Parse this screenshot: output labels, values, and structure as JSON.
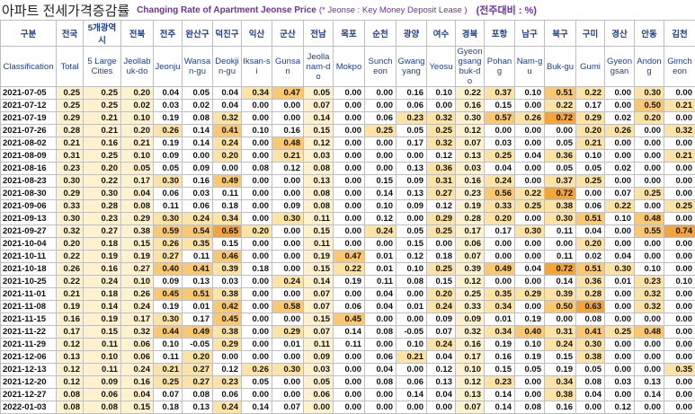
{
  "header": {
    "title": "아파트 전세가격증감률",
    "subtitle": "Changing Rate of Apartment Jeonse Price",
    "note": "(* Jeonse : Key Money Deposit Lease )",
    "unit": "(전주대비 : %)"
  },
  "table": {
    "corner": {
      "ko": "구분",
      "en": "Classification"
    },
    "columns": [
      {
        "ko": "전국",
        "en": "Total"
      },
      {
        "ko": "5개광역시",
        "en": "5 Large Cities"
      },
      {
        "ko": "전북",
        "en": "Jeollabuk-do"
      },
      {
        "ko": "전주",
        "en": "Jeonju"
      },
      {
        "ko": "완산구",
        "en": "Wansan-gu"
      },
      {
        "ko": "덕진구",
        "en": "Deokjin-gu"
      },
      {
        "ko": "익산",
        "en": "Iksan-si"
      },
      {
        "ko": "군산",
        "en": "Gunsan"
      },
      {
        "ko": "전남",
        "en": "Jeollanam-do"
      },
      {
        "ko": "목포",
        "en": "Mokpo"
      },
      {
        "ko": "순천",
        "en": "Suncheon"
      },
      {
        "ko": "광양",
        "en": "Gwangyang"
      },
      {
        "ko": "여수",
        "en": "Yeosu"
      },
      {
        "ko": "경북",
        "en": "Gyeongsangbuk-do"
      },
      {
        "ko": "포항",
        "en": "Pohang"
      },
      {
        "ko": "남구",
        "en": "Nam-gu"
      },
      {
        "ko": "북구",
        "en": "Buk-gu"
      },
      {
        "ko": "구미",
        "en": "Gumi"
      },
      {
        "ko": "경산",
        "en": "Gyeongsan"
      },
      {
        "ko": "안동",
        "en": "Andong"
      },
      {
        "ko": "김천",
        "en": "Gimcheon"
      }
    ],
    "rows": [
      {
        "date": "2021-07-05",
        "values": [
          "0.25",
          "0.25",
          "0.20",
          "0.04",
          "0.05",
          "0.04",
          "0.34",
          "0.47",
          "0.05",
          "0.00",
          "0.00",
          "0.16",
          "0.10",
          "0.22",
          "0.37",
          "0.10",
          "0.51",
          "0.22",
          "0.00",
          "0.30",
          "0.00"
        ]
      },
      {
        "date": "2021-07-12",
        "values": [
          "0.25",
          "0.25",
          "0.02",
          "0.03",
          "0.02",
          "0.04",
          "0.00",
          "0.00",
          "0.07",
          "0.00",
          "0.00",
          "0.06",
          "0.00",
          "0.16",
          "0.15",
          "0.00",
          "0.22",
          "0.17",
          "0.00",
          "0.50",
          "0.21"
        ]
      },
      {
        "date": "2021-07-19",
        "values": [
          "0.29",
          "0.21",
          "0.10",
          "0.19",
          "0.08",
          "0.32",
          "0.00",
          "0.00",
          "0.14",
          "0.00",
          "0.06",
          "0.23",
          "0.32",
          "0.30",
          "0.57",
          "0.26",
          "0.72",
          "0.29",
          "0.02",
          "0.20",
          "0.00"
        ]
      },
      {
        "date": "2021-07-26",
        "values": [
          "0.28",
          "0.21",
          "0.20",
          "0.26",
          "0.14",
          "0.41",
          "0.10",
          "0.16",
          "0.15",
          "0.00",
          "0.25",
          "0.05",
          "0.25",
          "0.12",
          "0.00",
          "0.00",
          "0.00",
          "0.20",
          "0.26",
          "0.00",
          "0.32"
        ]
      },
      {
        "date": "2021-08-02",
        "values": [
          "0.21",
          "0.16",
          "0.21",
          "0.19",
          "0.14",
          "0.24",
          "0.00",
          "0.48",
          "0.12",
          "0.00",
          "0.00",
          "0.17",
          "0.32",
          "0.07",
          "0.03",
          "0.00",
          "0.05",
          "0.21",
          "0.00",
          "0.00",
          "0.00"
        ]
      },
      {
        "date": "2021-08-09",
        "values": [
          "0.31",
          "0.25",
          "0.10",
          "0.09",
          "0.00",
          "0.20",
          "0.00",
          "0.21",
          "0.03",
          "0.00",
          "0.00",
          "0.00",
          "0.12",
          "0.13",
          "0.25",
          "0.04",
          "0.36",
          "0.10",
          "0.00",
          "0.00",
          "0.21"
        ]
      },
      {
        "date": "2021-08-16",
        "values": [
          "0.23",
          "0.20",
          "0.05",
          "0.05",
          "0.09",
          "0.00",
          "0.08",
          "0.12",
          "0.08",
          "0.00",
          "0.00",
          "0.13",
          "0.36",
          "0.03",
          "0.04",
          "0.00",
          "0.05",
          "0.05",
          "0.02",
          "0.00",
          "0.00"
        ]
      },
      {
        "date": "2021-08-23",
        "values": [
          "0.30",
          "0.22",
          "0.17",
          "0.30",
          "0.16",
          "0.49",
          "0.00",
          "0.00",
          "0.13",
          "0.00",
          "0.15",
          "0.09",
          "0.31",
          "0.16",
          "0.24",
          "0.00",
          "0.37",
          "0.25",
          "0.00",
          "0.00",
          "0.00"
        ]
      },
      {
        "date": "2021-08-30",
        "values": [
          "0.29",
          "0.30",
          "0.04",
          "0.06",
          "0.03",
          "0.11",
          "0.00",
          "0.00",
          "0.08",
          "0.00",
          "0.14",
          "0.13",
          "0.27",
          "0.23",
          "0.56",
          "0.22",
          "0.72",
          "0.00",
          "0.07",
          "0.25",
          "0.00"
        ]
      },
      {
        "date": "2021-09-06",
        "values": [
          "0.33",
          "0.28",
          "0.08",
          "0.11",
          "0.06",
          "0.18",
          "0.00",
          "0.09",
          "0.08",
          "0.00",
          "0.10",
          "0.09",
          "0.12",
          "0.19",
          "0.33",
          "0.25",
          "0.38",
          "0.06",
          "0.22",
          "0.00",
          "0.25"
        ]
      },
      {
        "date": "2021-09-13",
        "values": [
          "0.30",
          "0.23",
          "0.29",
          "0.30",
          "0.24",
          "0.34",
          "0.00",
          "0.30",
          "0.11",
          "0.00",
          "0.12",
          "0.00",
          "0.29",
          "0.28",
          "0.20",
          "0.00",
          "0.30",
          "0.51",
          "0.10",
          "0.48",
          "0.00"
        ]
      },
      {
        "date": "2021-09-27",
        "values": [
          "0.32",
          "0.27",
          "0.38",
          "0.59",
          "0.54",
          "0.65",
          "0.20",
          "0.00",
          "0.15",
          "0.00",
          "0.24",
          "0.05",
          "0.25",
          "0.17",
          "0.17",
          "0.30",
          "0.11",
          "0.04",
          "0.00",
          "0.55",
          "0.74"
        ]
      },
      {
        "date": "2021-10-04",
        "values": [
          "0.20",
          "0.18",
          "0.15",
          "0.26",
          "0.35",
          "0.15",
          "0.00",
          "0.00",
          "0.11",
          "0.00",
          "0.00",
          "0.15",
          "0.00",
          "0.06",
          "0.00",
          "0.00",
          "0.00",
          "0.20",
          "0.00",
          "0.00",
          "0.00"
        ]
      },
      {
        "date": "2021-10-11",
        "values": [
          "0.22",
          "0.19",
          "0.19",
          "0.27",
          "0.11",
          "0.46",
          "0.00",
          "0.00",
          "0.19",
          "0.47",
          "0.01",
          "0.12",
          "0.18",
          "0.07",
          "0.00",
          "0.00",
          "0.11",
          "0.02",
          "0.04",
          "0.00",
          "0.00"
        ]
      },
      {
        "date": "2021-10-18",
        "values": [
          "0.26",
          "0.16",
          "0.27",
          "0.40",
          "0.41",
          "0.39",
          "0.18",
          "0.00",
          "0.15",
          "0.22",
          "0.01",
          "0.10",
          "0.25",
          "0.39",
          "0.49",
          "0.04",
          "0.72",
          "0.51",
          "0.30",
          "0.10",
          "0.00"
        ]
      },
      {
        "date": "2021-10-25",
        "values": [
          "0.22",
          "0.24",
          "0.10",
          "0.09",
          "0.13",
          "0.03",
          "0.00",
          "0.24",
          "0.14",
          "0.19",
          "0.11",
          "0.08",
          "0.15",
          "0.12",
          "0.00",
          "0.00",
          "0.14",
          "0.36",
          "0.01",
          "0.23",
          "0.10"
        ]
      },
      {
        "date": "2021-11-01",
        "values": [
          "0.21",
          "0.18",
          "0.26",
          "0.45",
          "0.51",
          "0.38",
          "0.00",
          "0.00",
          "0.07",
          "0.00",
          "0.04",
          "0.00",
          "0.20",
          "0.25",
          "0.35",
          "0.29",
          "0.39",
          "0.28",
          "0.00",
          "0.32",
          "0.00"
        ]
      },
      {
        "date": "2021-11-08",
        "values": [
          "0.19",
          "0.14",
          "0.24",
          "0.19",
          "0.01",
          "0.42",
          "0.00",
          "0.58",
          "0.07",
          "0.06",
          "0.04",
          "0.01",
          "0.24",
          "0.33",
          "0.34",
          "0.00",
          "0.50",
          "0.63",
          "0.00",
          "0.32",
          "0.00"
        ]
      },
      {
        "date": "2021-11-15",
        "values": [
          "0.16",
          "0.19",
          "0.17",
          "0.30",
          "0.17",
          "0.45",
          "0.00",
          "0.00",
          "0.15",
          "0.45",
          "0.00",
          "0.00",
          "0.09",
          "0.09",
          "0.01",
          "0.19",
          "0.00",
          "0.08",
          "0.00",
          "0.00",
          "0.00"
        ]
      },
      {
        "date": "2021-11-22",
        "values": [
          "0.17",
          "0.15",
          "0.32",
          "0.44",
          "0.49",
          "0.38",
          "0.00",
          "0.29",
          "0.07",
          "0.14",
          "0.08",
          "-0.05",
          "0.07",
          "0.32",
          "0.34",
          "0.40",
          "0.31",
          "0.41",
          "0.25",
          "0.48",
          "0.00"
        ]
      },
      {
        "date": "2021-11-29",
        "values": [
          "0.12",
          "0.11",
          "0.06",
          "0.10",
          "-0.05",
          "0.29",
          "0.00",
          "0.01",
          "0.11",
          "0.11",
          "0.00",
          "0.10",
          "0.24",
          "0.16",
          "0.19",
          "0.10",
          "0.24",
          "0.30",
          "0.00",
          "0.00",
          "0.00"
        ]
      },
      {
        "date": "2021-12-06",
        "values": [
          "0.13",
          "0.10",
          "0.06",
          "0.11",
          "0.20",
          "0.00",
          "0.00",
          "0.00",
          "0.09",
          "0.00",
          "0.06",
          "0.21",
          "0.04",
          "0.17",
          "0.16",
          "0.19",
          "0.15",
          "0.38",
          "0.00",
          "0.00",
          "0.00"
        ]
      },
      {
        "date": "2021-12-13",
        "values": [
          "0.12",
          "0.11",
          "0.24",
          "0.21",
          "0.27",
          "0.12",
          "0.26",
          "0.30",
          "0.03",
          "0.00",
          "0.04",
          "0.00",
          "0.12",
          "0.10",
          "0.15",
          "0.05",
          "0.19",
          "0.05",
          "0.00",
          "0.00",
          "0.35"
        ]
      },
      {
        "date": "2021-12-20",
        "values": [
          "0.12",
          "0.09",
          "0.16",
          "0.25",
          "0.27",
          "0.23",
          "0.05",
          "0.00",
          "0.05",
          "0.00",
          "0.08",
          "0.06",
          "0.13",
          "0.12",
          "0.23",
          "0.00",
          "0.34",
          "0.08",
          "0.03",
          "0.13",
          "0.00"
        ]
      },
      {
        "date": "2021-12-27",
        "values": [
          "0.08",
          "0.06",
          "0.04",
          "0.07",
          "0.08",
          "0.06",
          "0.00",
          "0.00",
          "0.06",
          "0.00",
          "0.00",
          "0.14",
          "0.04",
          "0.13",
          "0.14",
          "0.00",
          "0.38",
          "0.04",
          "0.00",
          "0.14",
          "0.00"
        ]
      },
      {
        "date": "2022-01-03",
        "values": [
          "0.08",
          "0.08",
          "0.15",
          "0.18",
          "0.13",
          "0.24",
          "0.14",
          "0.07",
          "0.00",
          "0.00",
          "0.00",
          "0.00",
          "0.00",
          "0.07",
          "0.14",
          "0.08",
          "0.16",
          "0.00",
          "0.12",
          "0.00",
          "0.00"
        ]
      }
    ]
  }
}
